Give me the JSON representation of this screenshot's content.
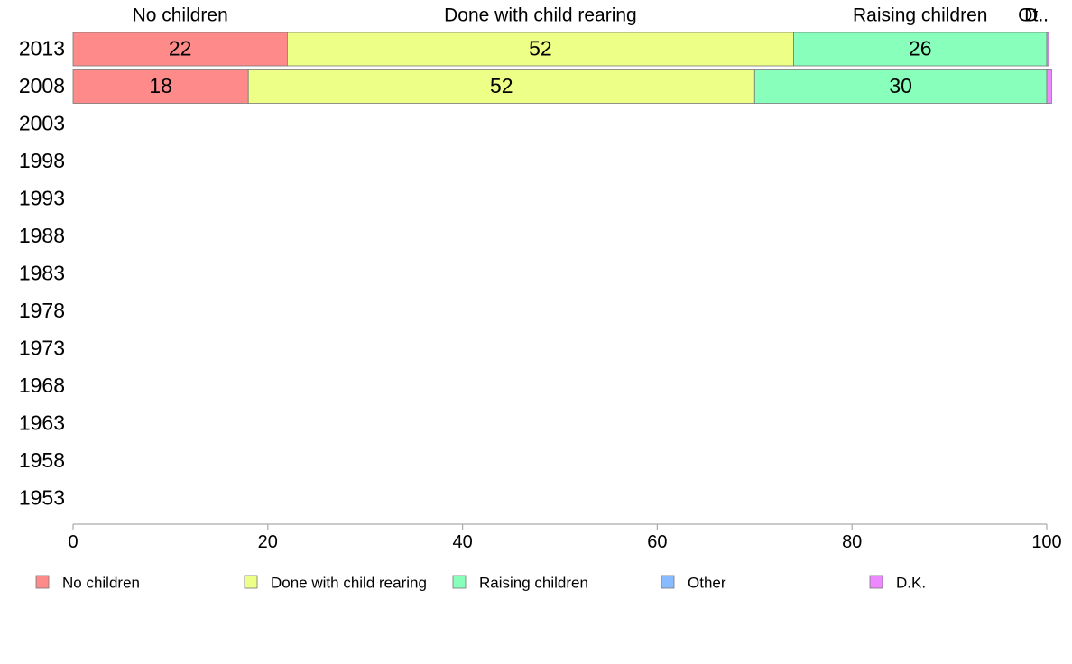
{
  "chart_data": {
    "type": "bar",
    "orientation": "horizontal",
    "stacked": true,
    "categories": [
      "2013",
      "2008",
      "2003",
      "1998",
      "1993",
      "1988",
      "1983",
      "1978",
      "1973",
      "1968",
      "1963",
      "1958",
      "1953"
    ],
    "series": [
      {
        "name": "No children",
        "color": "#ff8a8a",
        "values": [
          22,
          18,
          null,
          null,
          null,
          null,
          null,
          null,
          null,
          null,
          null,
          null,
          null
        ]
      },
      {
        "name": "Done with child rearing",
        "color": "#eeff88",
        "values": [
          52,
          52,
          null,
          null,
          null,
          null,
          null,
          null,
          null,
          null,
          null,
          null,
          null
        ]
      },
      {
        "name": "Raising children",
        "color": "#88ffbb",
        "values": [
          26,
          30,
          null,
          null,
          null,
          null,
          null,
          null,
          null,
          null,
          null,
          null,
          null
        ]
      },
      {
        "name": "Other",
        "color": "#88bbff",
        "values": [
          0,
          0,
          null,
          null,
          null,
          null,
          null,
          null,
          null,
          null,
          null,
          null,
          null
        ]
      },
      {
        "name": "D.K.",
        "color": "#ee88ff",
        "values": [
          0.2,
          0.5,
          null,
          null,
          null,
          null,
          null,
          null,
          null,
          null,
          null,
          null,
          null
        ]
      }
    ],
    "bar_labels": [
      [
        "22",
        "52",
        "26",
        "",
        ""
      ],
      [
        "18",
        "52",
        "30",
        "",
        ""
      ]
    ],
    "column_headers": [
      "No children",
      "Done with child rearing",
      "Raising children",
      "Ot..",
      "D.."
    ],
    "x_ticks": [
      "0",
      "20",
      "40",
      "60",
      "80",
      "100"
    ],
    "xlim": [
      0,
      100
    ],
    "title": "",
    "xlabel": "",
    "ylabel": "",
    "grid": false,
    "legend_position": "bottom"
  }
}
